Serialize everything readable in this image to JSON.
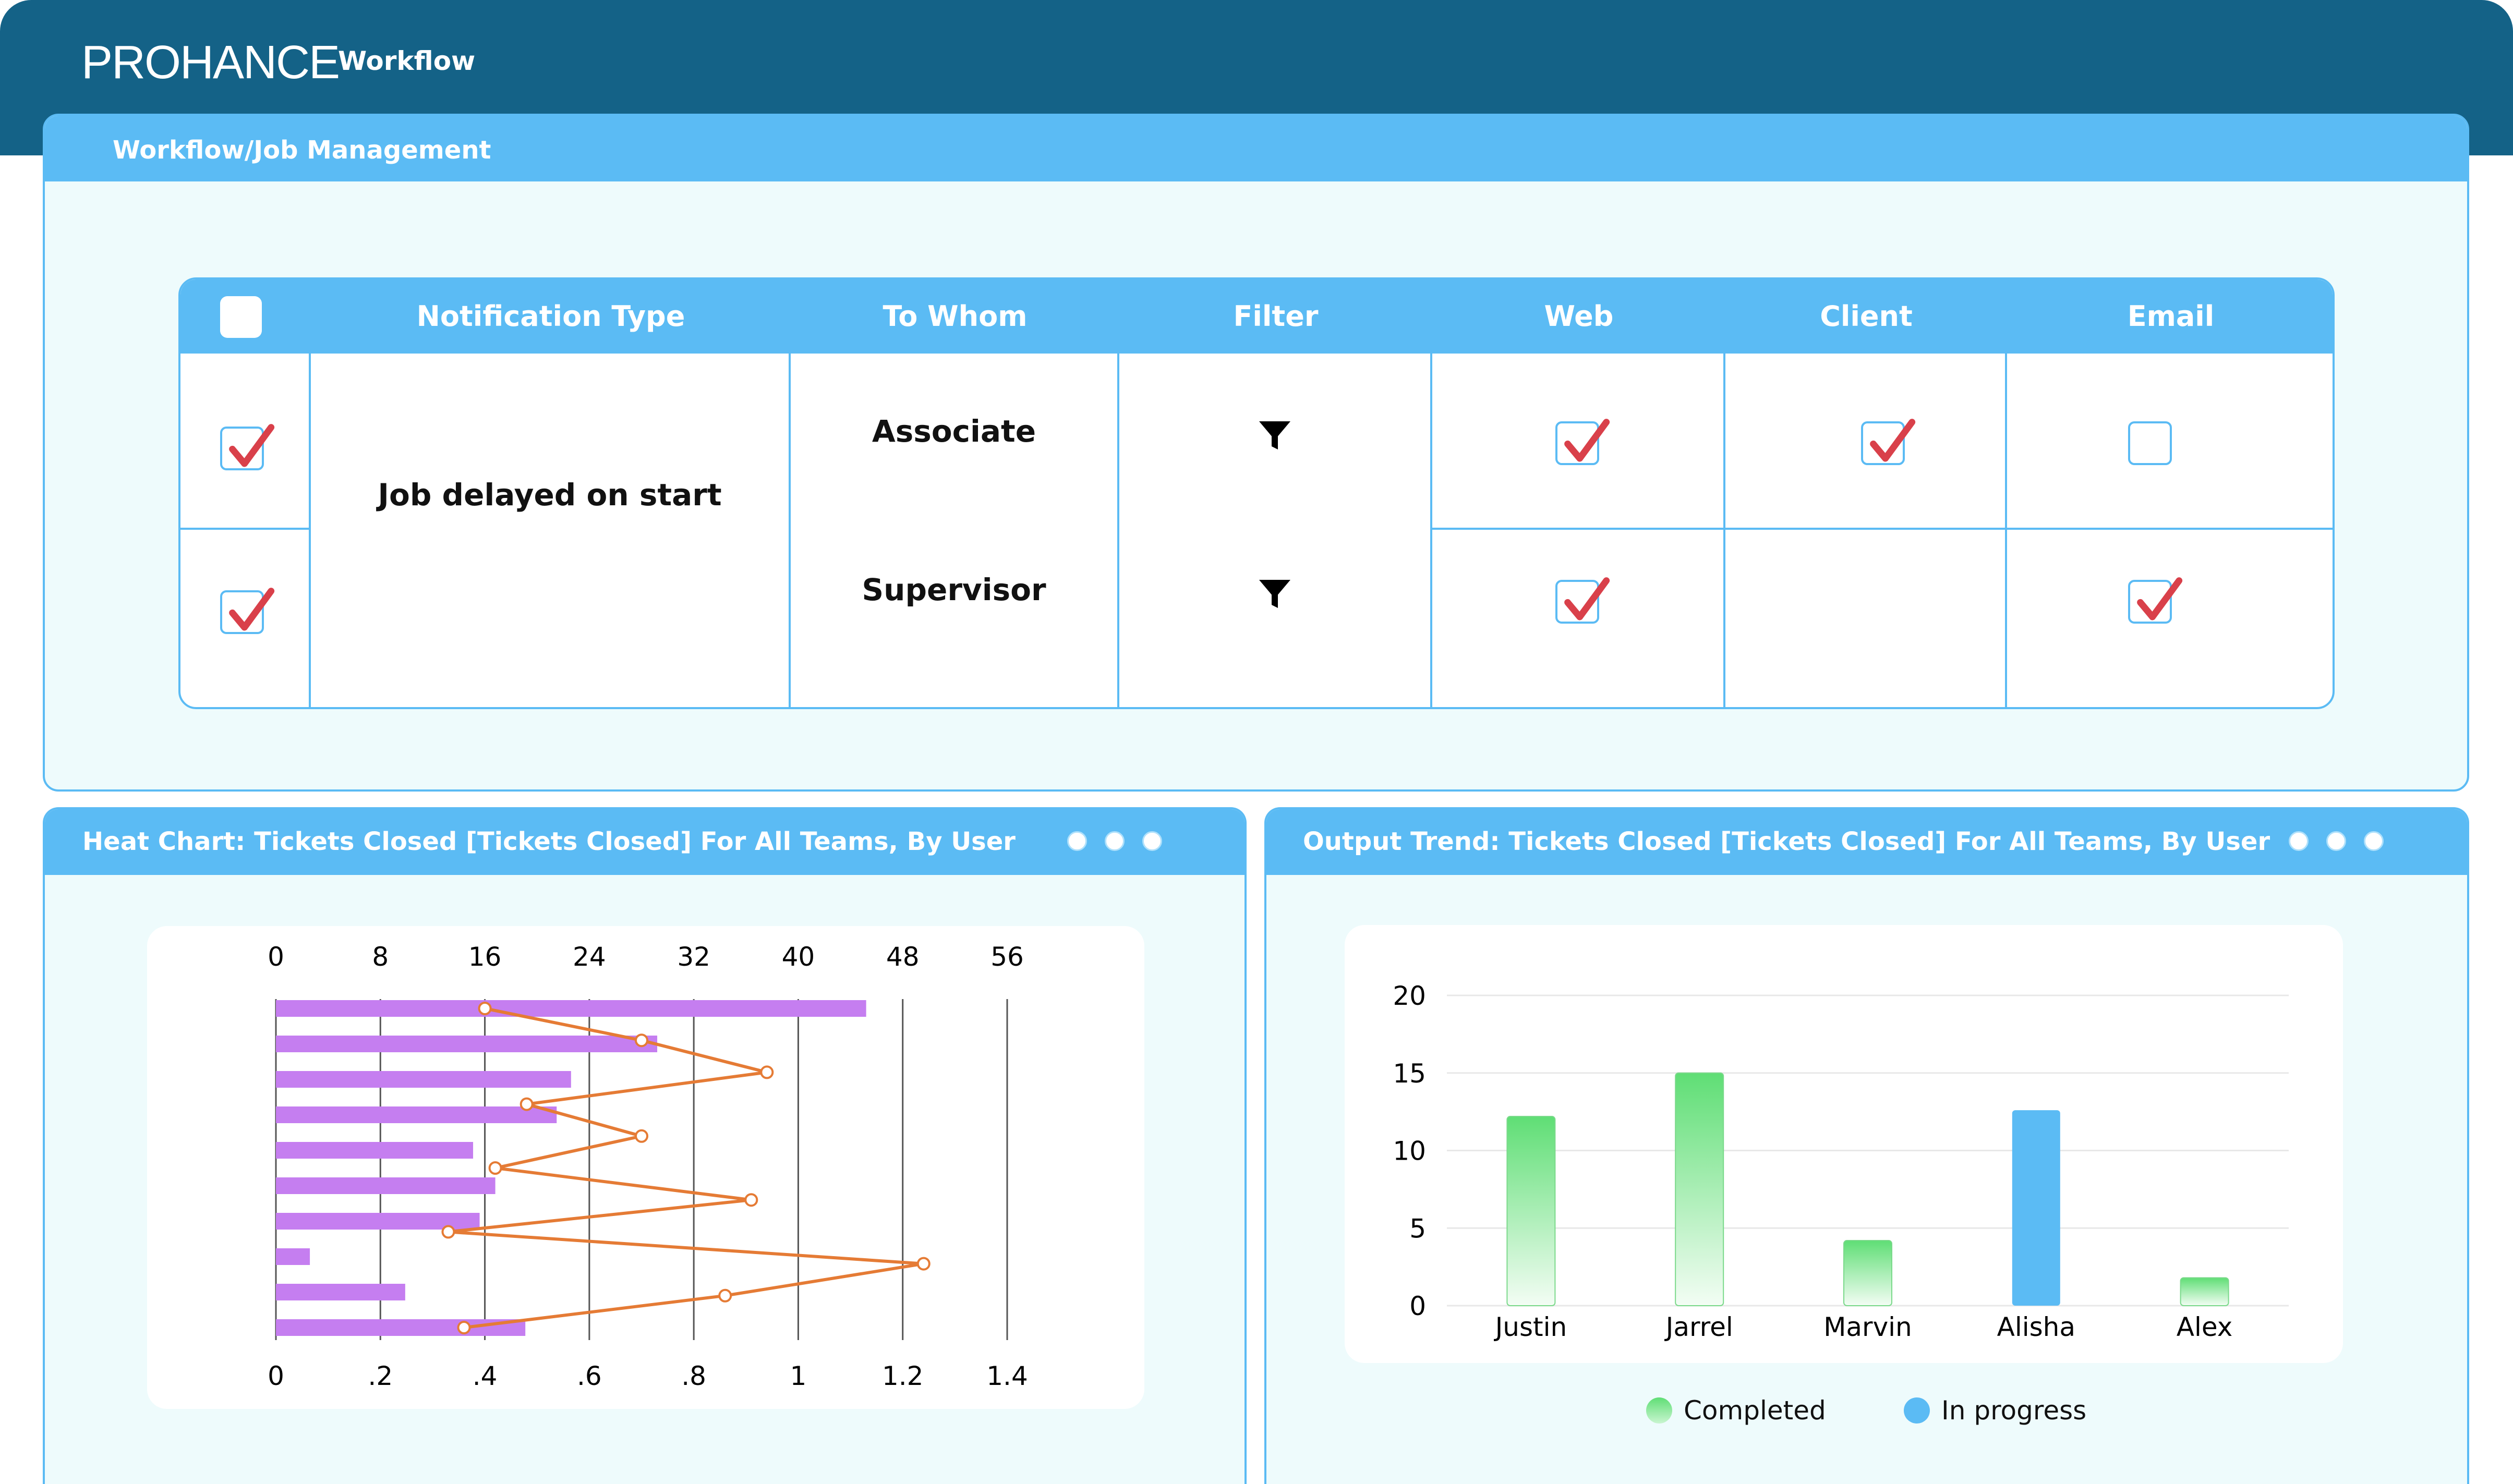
{
  "header": {
    "logo": "PROHANCE",
    "app": "Workflow"
  },
  "workflow_panel": {
    "title": "Workflow/Job Management",
    "columns": [
      "Notification Type",
      "To Whom",
      "Filter",
      "Web",
      "Client",
      "Email"
    ],
    "notification_type": "Job delayed on start",
    "rows": [
      {
        "to_whom": "Associate",
        "selected": true,
        "web": true,
        "client": true,
        "email": false
      },
      {
        "to_whom": "Supervisor",
        "selected": true,
        "web": true,
        "client": null,
        "email": true
      }
    ],
    "colors": {
      "header": "#5bbbf4",
      "check": "#d9404a",
      "panel_bg": "#eefbfc"
    }
  },
  "heat_panel": {
    "title": "Heat Chart: Tickets Closed [Tickets Closed] For All Teams, By User",
    "top_ticks": [
      "0",
      "8",
      "16",
      "24",
      "32",
      "40",
      "48",
      "56"
    ],
    "bottom_ticks": [
      "0",
      ".2",
      ".4",
      ".6",
      ".8",
      "1",
      "1.2",
      "1.4"
    ]
  },
  "output_panel": {
    "title": "Output Trend: Tickets Closed [Tickets Closed] For All Teams, By User",
    "y_ticks": [
      "20",
      "15",
      "10",
      "5",
      "0"
    ],
    "legend": {
      "completed": "Completed",
      "in_progress": "In progress"
    }
  },
  "chart_data": [
    {
      "type": "bar",
      "orientation": "horizontal",
      "title": "Heat Chart: Tickets Closed [Tickets Closed] For All Teams, By User",
      "xlim_top": [
        0,
        56
      ],
      "xlim_bottom": [
        0,
        1.4
      ],
      "grid": true,
      "bar_color": "#c57ef0",
      "line_color": "#e57b35",
      "bars": [
        45.2,
        29.2,
        22.6,
        21.5,
        15.1,
        16.8,
        15.6,
        2.6,
        9.9,
        19.1
      ],
      "line": [
        0.4,
        0.7,
        0.94,
        0.48,
        0.7,
        0.42,
        0.91,
        0.33,
        1.24,
        0.86,
        0.36
      ]
    },
    {
      "type": "bar",
      "title": "Output Trend: Tickets Closed [Tickets Closed] For All Teams, By User",
      "categories": [
        "Justin",
        "Jarrel",
        "Marvin",
        "Alisha",
        "Alex"
      ],
      "series": [
        {
          "name": "Completed",
          "values": [
            12.2,
            15,
            4.2,
            null,
            1.8
          ],
          "color": "#5fde75"
        },
        {
          "name": "In progress",
          "values": [
            null,
            null,
            null,
            12.6,
            null
          ],
          "color": "#5bbbf4"
        }
      ],
      "ylim": [
        0,
        20
      ],
      "legend": "bottom-center"
    }
  ]
}
